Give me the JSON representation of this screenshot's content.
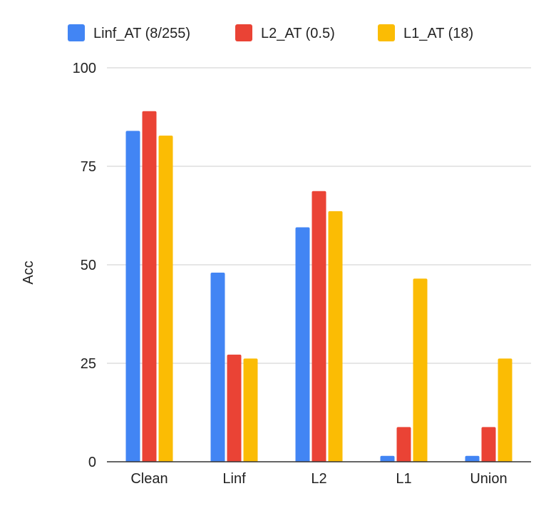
{
  "chart_data": {
    "type": "bar",
    "title": "",
    "xlabel": "",
    "ylabel": "Acc",
    "ylim": [
      0,
      100
    ],
    "yticks": [
      0,
      25,
      50,
      75,
      100
    ],
    "grid": true,
    "legend_position": "top",
    "categories": [
      "Clean",
      "Linf",
      "L2",
      "L1",
      "Union"
    ],
    "series": [
      {
        "name": "Linf_AT (8/255)",
        "color": "#4285F4",
        "values": [
          84,
          48,
          59.5,
          1.5,
          1.5
        ]
      },
      {
        "name": "L2_AT (0.5)",
        "color": "#EA4335",
        "values": [
          89,
          27.2,
          68.7,
          8.8,
          8.8
        ]
      },
      {
        "name": "L1_AT (18)",
        "color": "#FBBC04",
        "values": [
          82.8,
          26.2,
          63.6,
          46.5,
          26.2
        ]
      }
    ]
  }
}
